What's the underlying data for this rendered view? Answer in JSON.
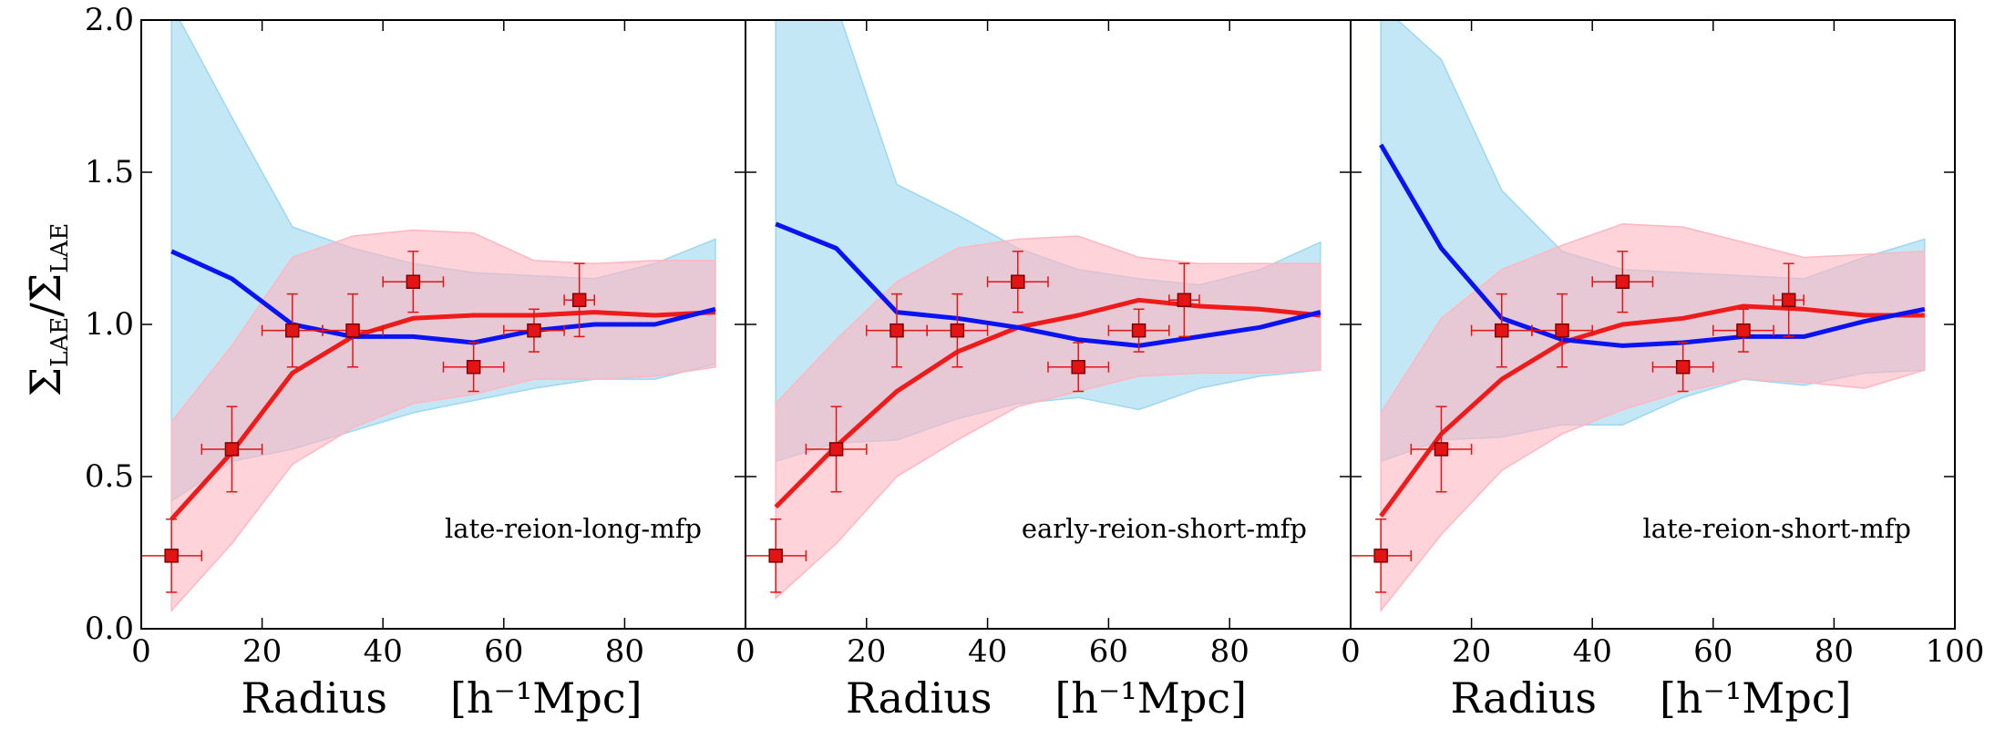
{
  "chart_data": {
    "type": "line",
    "ylabel": "Σ_LAE / Σ̄_LAE",
    "ylim": [
      0,
      2
    ],
    "xlim": [
      0,
      100
    ],
    "yticks": [
      "0.0",
      "0.5",
      "1.0",
      "1.5",
      "2.0"
    ],
    "panels": [
      {
        "name": "late-reion-long-mfp",
        "label": "late-reion-long-mfp",
        "xlabel_main": "Radius",
        "xlabel_unit": "[h⁻¹Mpc]",
        "xticks": [
          "0",
          "20",
          "40",
          "60",
          "80"
        ],
        "blue_line": {
          "x": [
            5,
            15,
            25,
            35,
            45,
            55,
            65,
            75,
            85,
            95
          ],
          "y": [
            1.24,
            1.15,
            1.0,
            0.96,
            0.96,
            0.94,
            0.98,
            1.0,
            1.0,
            1.05
          ]
        },
        "blue_band": {
          "x": [
            5,
            15,
            25,
            35,
            45,
            55,
            65,
            75,
            85,
            95
          ],
          "upper": [
            2.05,
            1.68,
            1.32,
            1.25,
            1.2,
            1.17,
            1.16,
            1.15,
            1.2,
            1.28
          ],
          "lower": [
            0.42,
            0.55,
            0.59,
            0.65,
            0.71,
            0.75,
            0.79,
            0.82,
            0.82,
            0.87
          ]
        },
        "red_line": {
          "x": [
            5,
            15,
            25,
            35,
            45,
            55,
            65,
            75,
            85,
            95
          ],
          "y": [
            0.36,
            0.58,
            0.84,
            0.96,
            1.02,
            1.03,
            1.03,
            1.04,
            1.03,
            1.04
          ]
        },
        "red_band": {
          "x": [
            5,
            15,
            25,
            35,
            45,
            55,
            65,
            75,
            85,
            95
          ],
          "upper": [
            0.68,
            0.93,
            1.22,
            1.29,
            1.31,
            1.3,
            1.21,
            1.2,
            1.21,
            1.21
          ],
          "lower": [
            0.06,
            0.28,
            0.54,
            0.66,
            0.74,
            0.77,
            0.82,
            0.82,
            0.83,
            0.86
          ]
        }
      },
      {
        "name": "early-reion-short-mfp",
        "label": "early-reion-short-mfp",
        "xlabel_main": "Radius",
        "xlabel_unit": "[h⁻¹Mpc]",
        "xticks": [
          "0",
          "20",
          "40",
          "60",
          "80"
        ],
        "blue_line": {
          "x": [
            5,
            15,
            25,
            35,
            45,
            55,
            65,
            75,
            85,
            95
          ],
          "y": [
            1.33,
            1.25,
            1.04,
            1.02,
            0.99,
            0.95,
            0.93,
            0.96,
            0.99,
            1.04
          ]
        },
        "blue_band": {
          "x": [
            5,
            15,
            25,
            35,
            45,
            55,
            65,
            75,
            85,
            95
          ],
          "upper": [
            2.05,
            2.05,
            1.46,
            1.36,
            1.25,
            1.18,
            1.15,
            1.13,
            1.18,
            1.27
          ],
          "lower": [
            0.55,
            0.61,
            0.62,
            0.69,
            0.74,
            0.76,
            0.72,
            0.79,
            0.83,
            0.85
          ]
        },
        "red_line": {
          "x": [
            5,
            15,
            25,
            35,
            45,
            55,
            65,
            75,
            85,
            95
          ],
          "y": [
            0.4,
            0.6,
            0.78,
            0.91,
            0.99,
            1.03,
            1.08,
            1.06,
            1.05,
            1.03
          ]
        },
        "red_band": {
          "x": [
            5,
            15,
            25,
            35,
            45,
            55,
            65,
            75,
            85,
            95
          ],
          "upper": [
            0.74,
            0.95,
            1.14,
            1.25,
            1.28,
            1.29,
            1.22,
            1.2,
            1.2,
            1.2
          ],
          "lower": [
            0.1,
            0.28,
            0.5,
            0.62,
            0.73,
            0.78,
            0.83,
            0.84,
            0.84,
            0.85
          ]
        }
      },
      {
        "name": "late-reion-short-mfp",
        "label": "late-reion-short-mfp",
        "xlabel_main": "Radius",
        "xlabel_unit": "[h⁻¹Mpc]",
        "xticks": [
          "0",
          "20",
          "40",
          "60",
          "80",
          "100"
        ],
        "blue_line": {
          "x": [
            5,
            15,
            25,
            35,
            45,
            55,
            65,
            75,
            85,
            95
          ],
          "y": [
            1.59,
            1.25,
            1.02,
            0.95,
            0.93,
            0.94,
            0.96,
            0.96,
            1.01,
            1.05
          ]
        },
        "blue_band": {
          "x": [
            5,
            15,
            25,
            35,
            45,
            55,
            65,
            75,
            85,
            95
          ],
          "upper": [
            2.05,
            1.87,
            1.44,
            1.24,
            1.18,
            1.17,
            1.16,
            1.15,
            1.22,
            1.28
          ],
          "lower": [
            0.55,
            0.62,
            0.63,
            0.67,
            0.67,
            0.76,
            0.82,
            0.8,
            0.84,
            0.85
          ]
        },
        "red_line": {
          "x": [
            5,
            15,
            25,
            35,
            45,
            55,
            65,
            75,
            85,
            95
          ],
          "y": [
            0.37,
            0.64,
            0.82,
            0.94,
            1.0,
            1.02,
            1.06,
            1.05,
            1.03,
            1.03
          ]
        },
        "red_band": {
          "x": [
            5,
            15,
            25,
            35,
            45,
            55,
            65,
            75,
            85,
            95
          ],
          "upper": [
            0.71,
            1.02,
            1.18,
            1.26,
            1.33,
            1.32,
            1.27,
            1.22,
            1.23,
            1.24
          ],
          "lower": [
            0.06,
            0.31,
            0.52,
            0.64,
            0.72,
            0.78,
            0.82,
            0.81,
            0.79,
            0.85
          ]
        }
      }
    ],
    "observations": {
      "name": "data points",
      "x": [
        5,
        15,
        25,
        35,
        45,
        55,
        65,
        72.5
      ],
      "y": [
        0.24,
        0.59,
        0.98,
        0.98,
        1.14,
        0.86,
        0.98,
        1.08
      ],
      "xerr": [
        5,
        5,
        5,
        5,
        5,
        5,
        5,
        2.5
      ],
      "yerr": [
        0.12,
        0.14,
        0.12,
        0.12,
        0.1,
        0.08,
        0.07,
        0.12
      ]
    },
    "colors": {
      "blue_line": "#0a14f0",
      "blue_band": "#9dd7f0",
      "red_line": "#ef1a1a",
      "red_band": "#ffb6c1",
      "marker": "#e41414"
    }
  }
}
